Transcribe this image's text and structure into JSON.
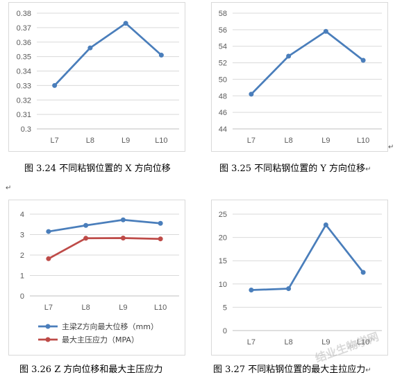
{
  "colors": {
    "blue": "#4a7ebb",
    "red": "#be4b48",
    "grid": "#d9d9d9",
    "axis": "#bfbfbf",
    "tick": "#595959"
  },
  "captions": {
    "c1": "图 3.24 不同粘钢位置的 X 方向位移",
    "c2": "图 3.25 不同粘钢位置的 Y 方向位移",
    "c3": "图 3.26 Z 方向位移和最大主压应力",
    "c4": "图 3.27 不同粘钢位置的最大主拉应力"
  },
  "watermark": {
    "line1": "结业生物学网",
    "line2": "zbvy.com"
  },
  "return_mark": "↵",
  "chart_data": [
    {
      "id": "c1",
      "type": "line",
      "categories": [
        "L7",
        "L8",
        "L9",
        "L10"
      ],
      "ylim": [
        0.3,
        0.38
      ],
      "yticks": [
        0.3,
        0.31,
        0.32,
        0.33,
        0.34,
        0.35,
        0.36,
        0.37,
        0.38
      ],
      "tick_decimals": 2,
      "tick_labels_override": {
        "0.3": "0.3"
      },
      "series": [
        {
          "color": "blue",
          "values": [
            0.33,
            0.356,
            0.373,
            0.351
          ]
        }
      ],
      "grid": true,
      "legend": "none"
    },
    {
      "id": "c2",
      "type": "line",
      "categories": [
        "L7",
        "L8",
        "L9",
        "L10"
      ],
      "ylim": [
        44,
        58
      ],
      "yticks": [
        44,
        46,
        48,
        50,
        52,
        54,
        56,
        58
      ],
      "tick_decimals": 0,
      "series": [
        {
          "color": "blue",
          "values": [
            48.2,
            52.8,
            55.8,
            52.3
          ]
        }
      ],
      "grid": true,
      "legend": "none"
    },
    {
      "id": "c3",
      "type": "line",
      "categories": [
        "L7",
        "L8",
        "L9",
        "L10"
      ],
      "ylim": [
        0,
        4
      ],
      "yticks": [
        0,
        1,
        2,
        3,
        4
      ],
      "tick_decimals": 0,
      "series": [
        {
          "name": "主梁Z方向最大位移（mm）",
          "color": "blue",
          "values": [
            3.15,
            3.45,
            3.72,
            3.55
          ]
        },
        {
          "name": "最大主压应力（MPA）",
          "color": "red",
          "values": [
            1.82,
            2.82,
            2.83,
            2.79
          ]
        }
      ],
      "grid": true,
      "legend": "bottom-left"
    },
    {
      "id": "c4",
      "type": "line",
      "categories": [
        "L7",
        "L8",
        "L9",
        "L10"
      ],
      "ylim": [
        0,
        25
      ],
      "yticks": [
        0,
        5,
        10,
        15,
        20,
        25
      ],
      "tick_decimals": 0,
      "series": [
        {
          "color": "blue",
          "values": [
            8.7,
            9.0,
            22.7,
            12.5
          ]
        }
      ],
      "grid": true,
      "legend": "none"
    }
  ]
}
